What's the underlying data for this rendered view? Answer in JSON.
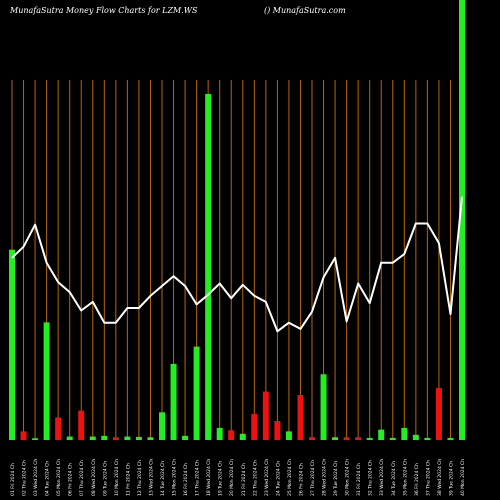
{
  "header": {
    "title_left": "MunafaSutra  Money Flow  Charts for LZM.WS",
    "title_right": "() MunafaSutra.com"
  },
  "colors": {
    "background": "#000000",
    "grid": "#b8660b",
    "up_bar": "#22ee22",
    "down_bar": "#ee1111",
    "price_line": "#ffffff"
  },
  "chart_data": {
    "type": "bar",
    "ylim": [
      0,
      100
    ],
    "categories": [
      "01 Fri 2024 Ch",
      "02 Thu 2024 Ch",
      "03 Wed 2024 Ch",
      "04 Tue 2024 Ch",
      "05 Mon 2024 Ch",
      "06 Fri 2024 Ch",
      "07 Thu 2024 Ch",
      "08 Wed 2024 Ch",
      "09 Tue 2024 Ch",
      "10 Mon 2024 Ch",
      "11 Fri 2024 Ch",
      "12 Thu 2024 Ch",
      "13 Wed 2024 Ch",
      "14 Tue 2024 Ch",
      "15 Mon 2024 Ch",
      "16 Fri 2024 Ch",
      "17 Thu 2024 Ch",
      "18 Wed 2024 Ch",
      "19 Tue 2024 Ch",
      "20 Mon 2024 Ch",
      "21 Fri 2024 Ch",
      "22 Thu 2024 Ch",
      "23 Wed 2024 Ch",
      "24 Tue 2024 Ch",
      "25 Mon 2024 Ch",
      "26 Fri 2024 Ch",
      "27 Thu 2024 Ch",
      "28 Wed 2024 Ch",
      "29 Tue 2024 Ch",
      "30 Mon 2024 Ch",
      "31 Fri 2024 Ch",
      "32 Thu 2024 Ch",
      "33 Wed 2024 Ch",
      "34 Tue 2024 Ch",
      "35 Mon 2024 Ch",
      "36 Fri 2024 Ch",
      "37 Thu 2024 Ch",
      "38 Wed 2024 Ch",
      "39 Tue 2024 Ch",
      "40 Mon 2024 Ch"
    ],
    "money_flow": [
      {
        "value": 55.0,
        "direction": "up"
      },
      {
        "value": 2.5,
        "direction": "down"
      },
      {
        "value": 0.5,
        "direction": "up"
      },
      {
        "value": 34.0,
        "direction": "up"
      },
      {
        "value": 6.5,
        "direction": "down"
      },
      {
        "value": 1.0,
        "direction": "up"
      },
      {
        "value": 8.5,
        "direction": "down"
      },
      {
        "value": 1.0,
        "direction": "up"
      },
      {
        "value": 1.2,
        "direction": "up"
      },
      {
        "value": 0.8,
        "direction": "down"
      },
      {
        "value": 1.0,
        "direction": "up"
      },
      {
        "value": 0.9,
        "direction": "up"
      },
      {
        "value": 0.8,
        "direction": "up"
      },
      {
        "value": 8.0,
        "direction": "up"
      },
      {
        "value": 22.0,
        "direction": "up"
      },
      {
        "value": 1.2,
        "direction": "up"
      },
      {
        "value": 27.0,
        "direction": "up"
      },
      {
        "value": 100.0,
        "direction": "up"
      },
      {
        "value": 3.5,
        "direction": "up"
      },
      {
        "value": 2.8,
        "direction": "down"
      },
      {
        "value": 1.8,
        "direction": "up"
      },
      {
        "value": 7.5,
        "direction": "down"
      },
      {
        "value": 14.0,
        "direction": "down"
      },
      {
        "value": 5.5,
        "direction": "down"
      },
      {
        "value": 2.5,
        "direction": "up"
      },
      {
        "value": 13.0,
        "direction": "down"
      },
      {
        "value": 0.8,
        "direction": "down"
      },
      {
        "value": 19.0,
        "direction": "up"
      },
      {
        "value": 0.8,
        "direction": "up"
      },
      {
        "value": 0.8,
        "direction": "down"
      },
      {
        "value": 0.8,
        "direction": "down"
      },
      {
        "value": 0.6,
        "direction": "up"
      },
      {
        "value": 3.0,
        "direction": "up"
      },
      {
        "value": 0.6,
        "direction": "up"
      },
      {
        "value": 3.5,
        "direction": "up"
      },
      {
        "value": 1.5,
        "direction": "up"
      },
      {
        "value": 0.6,
        "direction": "up"
      },
      {
        "value": 15.0,
        "direction": "down"
      },
      {
        "value": 0.6,
        "direction": "up"
      },
      {
        "value": 130.0,
        "direction": "up"
      }
    ],
    "price_ylim": [
      0,
      100
    ],
    "price": [
      56.0,
      60.5,
      69.5,
      54.0,
      46.0,
      42.0,
      34.5,
      38.0,
      29.5,
      29.5,
      35.5,
      35.5,
      40.5,
      44.5,
      48.5,
      44.5,
      37.0,
      41.0,
      45.5,
      39.5,
      45.0,
      40.5,
      38.0,
      26.0,
      29.5,
      27.0,
      34.0,
      48.0,
      56.0,
      30.0,
      45.5,
      37.5,
      54.0,
      54.0,
      57.5,
      70.0,
      70.0,
      62.0,
      33.0,
      81.0
    ]
  }
}
